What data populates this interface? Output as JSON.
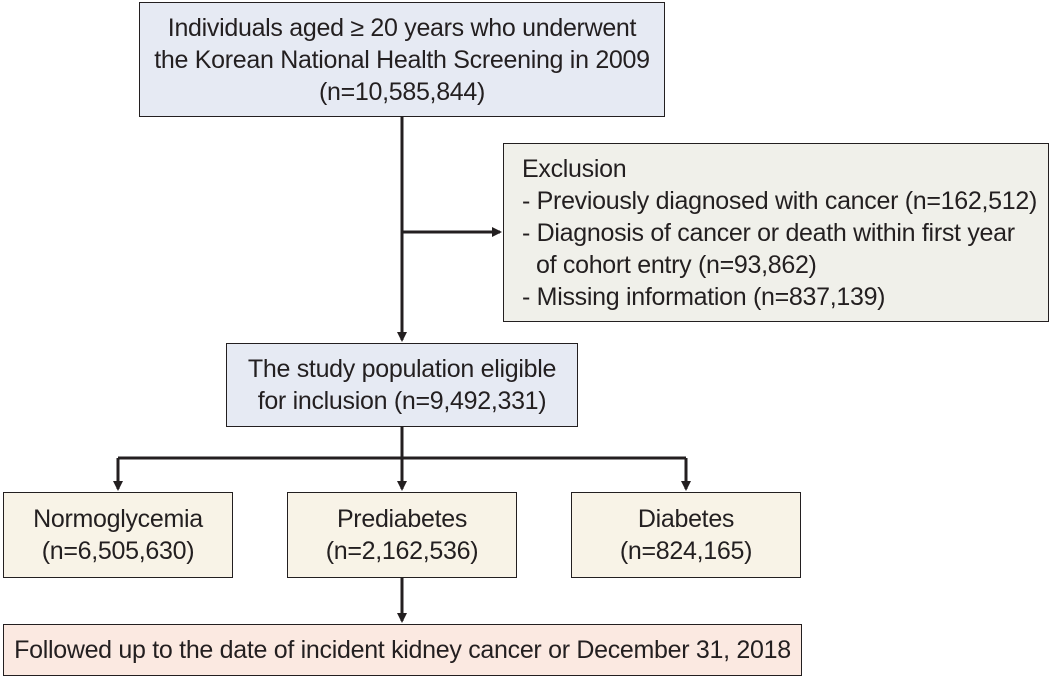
{
  "boxes": {
    "screening": {
      "lines": [
        "Individuals aged ≥ 20 years who underwent",
        "the Korean National Health Screening in 2009",
        "(n=10,585,844)"
      ]
    },
    "exclusion": {
      "title": "Exclusion",
      "items": [
        "- Previously diagnosed with cancer (n=162,512)",
        "- Diagnosis of cancer or death within first year",
        "of cohort entry (n=93,862)",
        "- Missing information (n=837,139)"
      ]
    },
    "eligible": {
      "lines": [
        "The study population eligible",
        "for inclusion (n=9,492,331)"
      ]
    },
    "normoglycemia": {
      "lines": [
        "Normoglycemia",
        "(n=6,505,630)"
      ]
    },
    "prediabetes": {
      "lines": [
        "Prediabetes",
        "(n=2,162,536)"
      ]
    },
    "diabetes": {
      "lines": [
        "Diabetes",
        "(n=824,165)"
      ]
    },
    "followup": {
      "lines": [
        "Followed up to the date of incident kidney cancer or December 31, 2018"
      ]
    }
  },
  "colors": {
    "line": "#231f20",
    "blue_fill": "#e6eaf3",
    "tan_fill": "#f8f3e7",
    "gray_fill": "#f0f0ea",
    "pink_fill": "#fbe9e1"
  }
}
